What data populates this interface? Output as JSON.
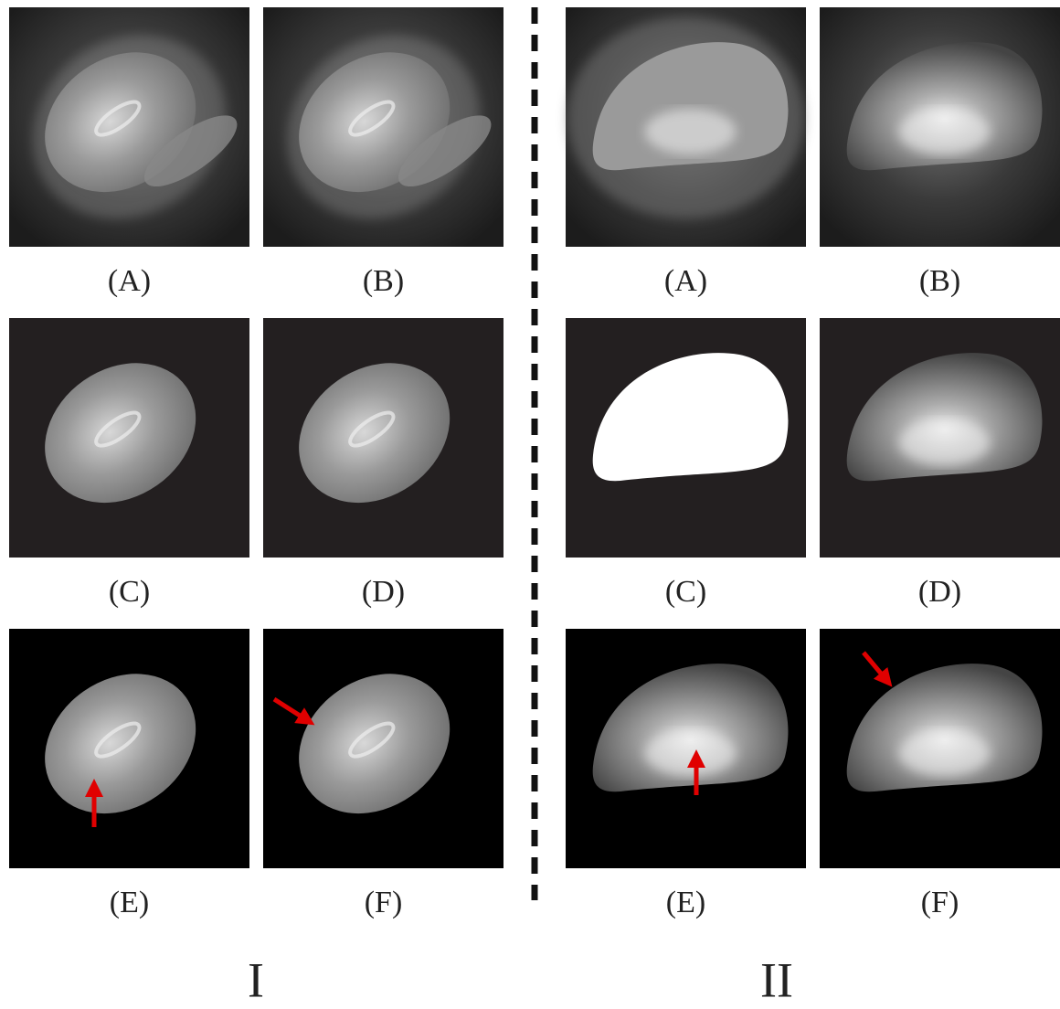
{
  "groups": [
    {
      "label": "I",
      "panels": [
        {
          "label": "(A)"
        },
        {
          "label": "(B)"
        },
        {
          "label": "(C)"
        },
        {
          "label": "(D)"
        },
        {
          "label": "(E)"
        },
        {
          "label": "(F)"
        }
      ]
    },
    {
      "label": "II",
      "panels": [
        {
          "label": "(A)"
        },
        {
          "label": "(B)"
        },
        {
          "label": "(C)"
        },
        {
          "label": "(D)"
        },
        {
          "label": "(E)"
        },
        {
          "label": "(F)"
        }
      ]
    }
  ]
}
